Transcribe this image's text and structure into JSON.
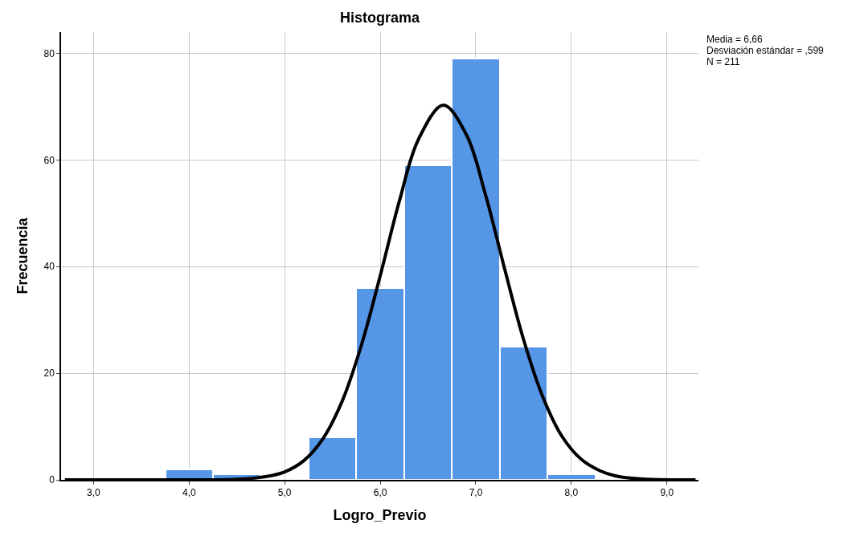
{
  "chart_data": {
    "type": "histogram",
    "title": "Histograma",
    "xlabel": "Logro_Previo",
    "ylabel": "Frecuencia",
    "bins": [
      3.75,
      4.25,
      4.75,
      5.25,
      5.75,
      6.25,
      6.75,
      7.25,
      7.75,
      8.25
    ],
    "values": [
      2,
      1,
      0,
      8,
      36,
      59,
      79,
      25,
      1
    ],
    "color": "#5596e6",
    "series": [
      {
        "type": "line",
        "color": "#000000",
        "x": [
          2.7,
          3.5,
          4.5,
          4.8,
          5.0,
          5.2,
          5.4,
          5.6,
          5.8,
          6.0,
          6.2,
          6.4,
          6.66,
          6.9,
          7.1,
          7.3,
          7.5,
          7.7,
          7.9,
          8.1,
          8.3,
          8.5,
          8.8,
          9.3
        ],
        "values": [
          0,
          0,
          0.1,
          0.6,
          1.5,
          3.6,
          7.7,
          14.7,
          25.1,
          38.3,
          52.3,
          63.9,
          70.3,
          64.8,
          53.6,
          39.7,
          26.3,
          15.6,
          8.2,
          3.9,
          1.7,
          0.6,
          0.1,
          0
        ]
      }
    ],
    "xlim": [
      2.66,
      9.33
    ],
    "ylim": [
      0,
      84
    ],
    "xticks": [
      {
        "value": 3,
        "label": "3,0"
      },
      {
        "value": 4,
        "label": "4,0"
      },
      {
        "value": 5,
        "label": "5,0"
      },
      {
        "value": 6,
        "label": "6,0"
      },
      {
        "value": 7,
        "label": "7,0"
      },
      {
        "value": 8,
        "label": "8,0"
      },
      {
        "value": 9,
        "label": "9,0"
      }
    ],
    "yticks": [
      0,
      20,
      40,
      60,
      80
    ],
    "grid": true,
    "annotations": [
      "Media = 6,66",
      "Desviación estándar = ,599",
      "N = 211"
    ]
  }
}
